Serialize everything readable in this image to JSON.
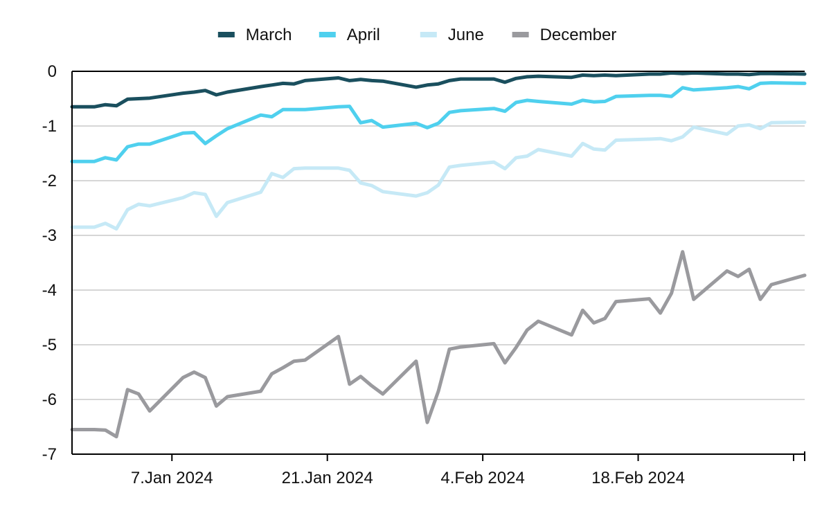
{
  "chart_data": {
    "type": "line",
    "title": "",
    "xlabel": "",
    "ylabel": "",
    "x": [
      "2023-12-29",
      "2023-12-30",
      "2023-12-31",
      "2024-01-01",
      "2024-01-02",
      "2024-01-03",
      "2024-01-04",
      "2024-01-05",
      "2024-01-08",
      "2024-01-09",
      "2024-01-10",
      "2024-01-11",
      "2024-01-12",
      "2024-01-15",
      "2024-01-16",
      "2024-01-17",
      "2024-01-18",
      "2024-01-19",
      "2024-01-22",
      "2024-01-23",
      "2024-01-24",
      "2024-01-25",
      "2024-01-26",
      "2024-01-29",
      "2024-01-30",
      "2024-01-31",
      "2024-02-01",
      "2024-02-02",
      "2024-02-05",
      "2024-02-06",
      "2024-02-07",
      "2024-02-08",
      "2024-02-09",
      "2024-02-12",
      "2024-02-13",
      "2024-02-14",
      "2024-02-15",
      "2024-02-16",
      "2024-02-19",
      "2024-02-20",
      "2024-02-21",
      "2024-02-22",
      "2024-02-23",
      "2024-02-26",
      "2024-02-27",
      "2024-02-28",
      "2024-02-29",
      "2024-03-01",
      "2024-03-04"
    ],
    "series": [
      {
        "name": "March",
        "color": "#1a4f5e",
        "values": [
          -0.65,
          -0.65,
          -0.65,
          -0.61,
          -0.63,
          -0.51,
          -0.5,
          -0.49,
          -0.4,
          -0.38,
          -0.35,
          -0.43,
          -0.38,
          -0.28,
          -0.25,
          -0.22,
          -0.23,
          -0.17,
          -0.12,
          -0.17,
          -0.15,
          -0.17,
          -0.18,
          -0.29,
          -0.25,
          -0.23,
          -0.17,
          -0.14,
          -0.14,
          -0.2,
          -0.13,
          -0.1,
          -0.09,
          -0.11,
          -0.07,
          -0.08,
          -0.07,
          -0.08,
          -0.05,
          -0.05,
          -0.03,
          -0.04,
          -0.03,
          -0.05,
          -0.05,
          -0.06,
          -0.04,
          -0.04,
          -0.05
        ]
      },
      {
        "name": "April",
        "color": "#4fd0ee",
        "values": [
          -1.65,
          -1.65,
          -1.65,
          -1.58,
          -1.62,
          -1.38,
          -1.33,
          -1.33,
          -1.13,
          -1.12,
          -1.32,
          -1.18,
          -1.05,
          -0.8,
          -0.83,
          -0.7,
          -0.7,
          -0.7,
          -0.65,
          -0.64,
          -0.94,
          -0.9,
          -1.02,
          -0.95,
          -1.03,
          -0.95,
          -0.75,
          -0.72,
          -0.68,
          -0.73,
          -0.57,
          -0.53,
          -0.55,
          -0.6,
          -0.53,
          -0.56,
          -0.55,
          -0.46,
          -0.44,
          -0.44,
          -0.46,
          -0.3,
          -0.34,
          -0.3,
          -0.28,
          -0.32,
          -0.22,
          -0.21,
          -0.22
        ]
      },
      {
        "name": "June",
        "color": "#c6e9f6",
        "values": [
          -2.85,
          -2.85,
          -2.85,
          -2.78,
          -2.88,
          -2.53,
          -2.43,
          -2.46,
          -2.31,
          -2.22,
          -2.25,
          -2.65,
          -2.4,
          -2.21,
          -1.87,
          -1.94,
          -1.78,
          -1.77,
          -1.77,
          -1.81,
          -2.04,
          -2.09,
          -2.2,
          -2.28,
          -2.22,
          -2.08,
          -1.75,
          -1.72,
          -1.66,
          -1.78,
          -1.58,
          -1.55,
          -1.43,
          -1.55,
          -1.32,
          -1.42,
          -1.44,
          -1.26,
          -1.24,
          -1.23,
          -1.27,
          -1.2,
          -1.02,
          -1.15,
          -1.0,
          -0.98,
          -1.05,
          -0.94,
          -0.93
        ]
      },
      {
        "name": "December",
        "color": "#9a9a9e",
        "values": [
          -6.55,
          -6.55,
          -6.55,
          -6.56,
          -6.68,
          -5.82,
          -5.9,
          -6.21,
          -5.6,
          -5.5,
          -5.6,
          -6.12,
          -5.95,
          -5.85,
          -5.53,
          -5.42,
          -5.3,
          -5.28,
          -4.85,
          -5.72,
          -5.58,
          -5.75,
          -5.9,
          -5.3,
          -6.42,
          -5.85,
          -5.08,
          -5.04,
          -4.98,
          -5.33,
          -5.05,
          -4.73,
          -4.57,
          -4.82,
          -4.37,
          -4.6,
          -4.52,
          -4.21,
          -4.16,
          -4.42,
          -4.06,
          -3.3,
          -4.17,
          -3.65,
          -3.75,
          -3.62,
          -4.17,
          -3.9,
          -3.73
        ]
      }
    ],
    "ylim": [
      -7,
      0
    ],
    "y_ticks": [
      0,
      -1,
      -2,
      -3,
      -4,
      -5,
      -6,
      -7
    ],
    "y_tick_labels": [
      "0",
      "-1",
      "-2",
      "-3",
      "-4",
      "-5",
      "-6",
      "-7"
    ],
    "x_ticks": [
      {
        "date": "2024-01-07",
        "label": "7.Jan 2024"
      },
      {
        "date": "2024-01-21",
        "label": "21.Jan 2024"
      },
      {
        "date": "2024-02-04",
        "label": "4.Feb 2024"
      },
      {
        "date": "2024-02-18",
        "label": "18.Feb 2024"
      },
      {
        "date": "2024-03-03",
        "label": ""
      }
    ],
    "xlim": [
      "2023-12-29",
      "2024-03-04"
    ],
    "grid": "horizontal",
    "legend_position": "top-center"
  }
}
